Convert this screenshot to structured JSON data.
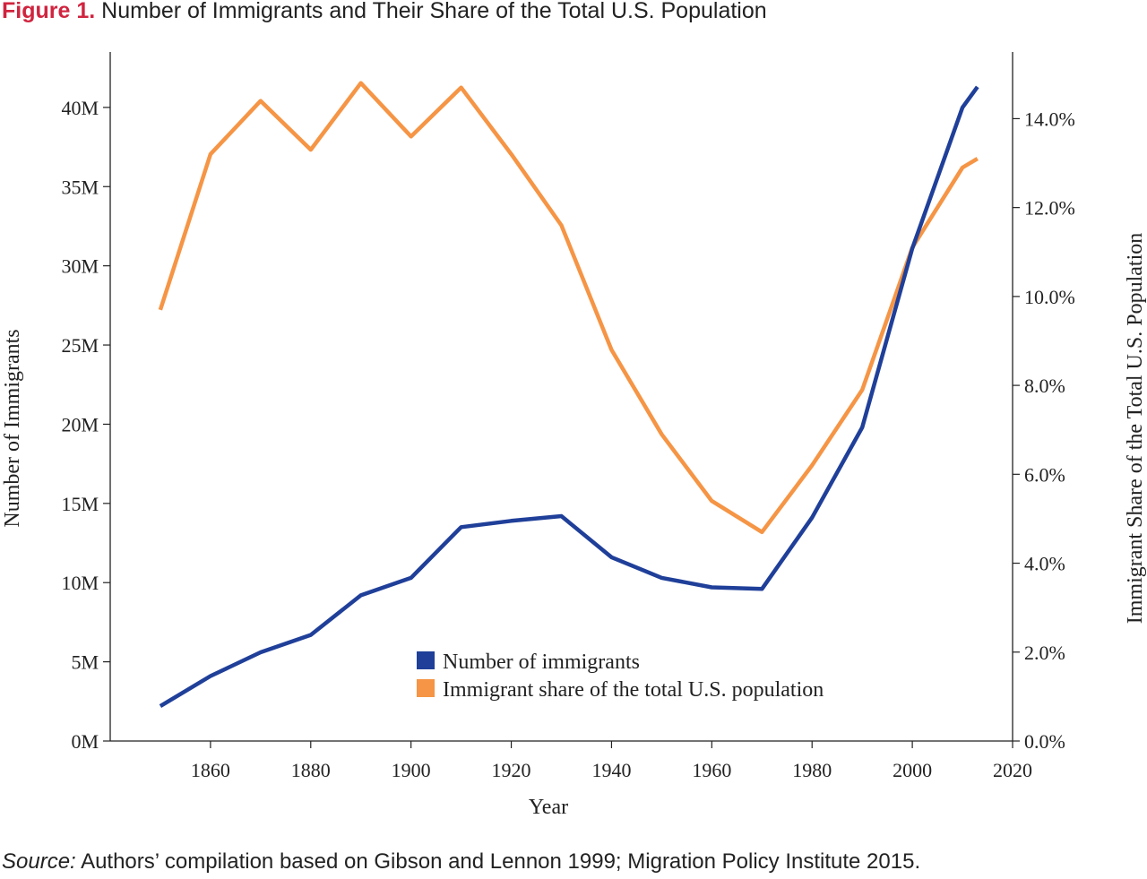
{
  "figure_label": "Figure 1.",
  "figure_title": "Number of Immigrants and Their Share of the Total U.S. Population",
  "source_label": "Source:",
  "source_text": "Authors’ compilation based on Gibson and Lennon 1999; Migration Policy Institute 2015.",
  "chart_data": {
    "type": "line",
    "title": "Number of Immigrants and Their Share of the Total U.S. Population",
    "xlabel": "Year",
    "ylabel_left": "Number of Immigrants",
    "ylabel_right": "Immigrant Share of the Total U.S. Population",
    "xlim": [
      1840,
      2020
    ],
    "ylim_left": [
      0,
      43500000
    ],
    "ylim_right": [
      0,
      15.5
    ],
    "x_ticks": [
      1860,
      1880,
      1900,
      1920,
      1940,
      1960,
      1980,
      2000,
      2020
    ],
    "x_tick_labels": [
      "1860",
      "1880",
      "1900",
      "1920",
      "1940",
      "1960",
      "1980",
      "2000",
      "2020"
    ],
    "y_left_ticks": [
      0,
      5000000,
      10000000,
      15000000,
      20000000,
      25000000,
      30000000,
      35000000,
      40000000
    ],
    "y_left_tick_labels": [
      "0M",
      "5M",
      "10M",
      "15M",
      "20M",
      "25M",
      "30M",
      "35M",
      "40M"
    ],
    "y_right_ticks": [
      0,
      2,
      4,
      6,
      8,
      10,
      12,
      14
    ],
    "y_right_tick_labels": [
      "0.0%",
      "2.0%",
      "4.0%",
      "6.0%",
      "8.0%",
      "10.0%",
      "12.0%",
      "14.0%"
    ],
    "grid": false,
    "legend_position": "bottom-center",
    "series": [
      {
        "name": "Number of immigrants",
        "axis": "left",
        "color": "#1f3f99",
        "x": [
          1850,
          1860,
          1870,
          1880,
          1890,
          1900,
          1910,
          1920,
          1930,
          1940,
          1950,
          1960,
          1970,
          1980,
          1990,
          2000,
          2010,
          2013
        ],
        "values": [
          2200000,
          4100000,
          5600000,
          6700000,
          9200000,
          10300000,
          13500000,
          13900000,
          14200000,
          11600000,
          10300000,
          9700000,
          9600000,
          14100000,
          19800000,
          31100000,
          40000000,
          41300000
        ]
      },
      {
        "name": "Immigrant share of the total U.S. population",
        "axis": "right",
        "color": "#f59545",
        "x": [
          1850,
          1860,
          1870,
          1880,
          1890,
          1900,
          1910,
          1920,
          1930,
          1940,
          1950,
          1960,
          1970,
          1980,
          1990,
          2000,
          2010,
          2013
        ],
        "values": [
          9.7,
          13.2,
          14.4,
          13.3,
          14.8,
          13.6,
          14.7,
          13.2,
          11.6,
          8.8,
          6.9,
          5.4,
          4.7,
          6.2,
          7.9,
          11.1,
          12.9,
          13.1
        ]
      }
    ]
  }
}
